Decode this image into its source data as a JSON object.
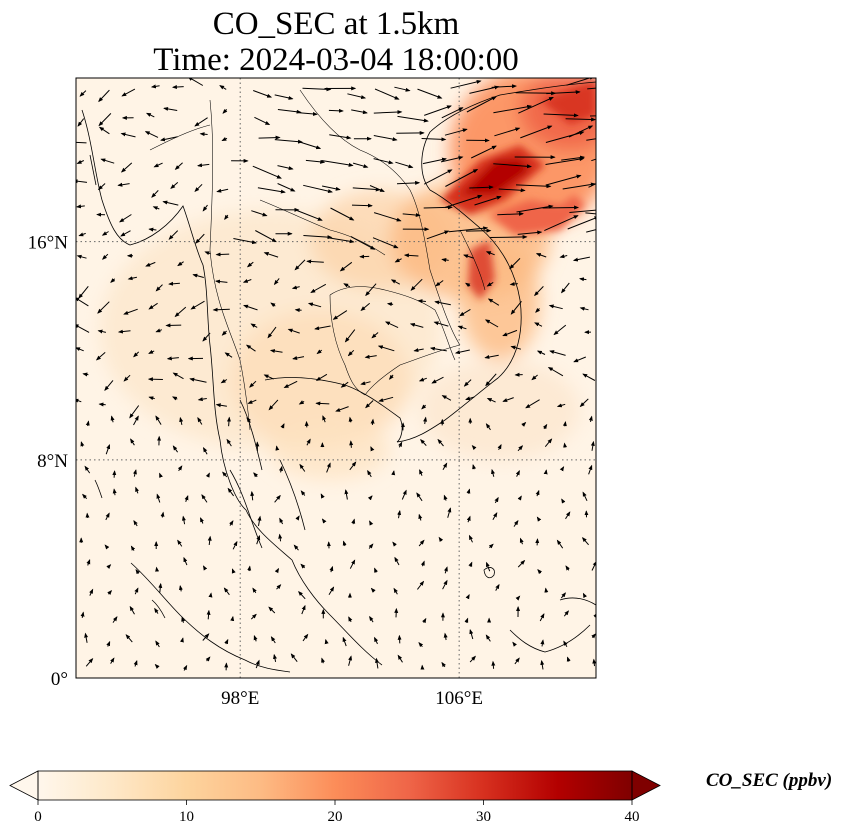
{
  "title": {
    "line1": "CO_SEC at 1.5km",
    "line2": "Time: 2024-03-04 18:00:00"
  },
  "map": {
    "lon_range": [
      92,
      111
    ],
    "lat_range": [
      0,
      22
    ],
    "lon_ticks": [
      {
        "value": 98,
        "label": "98°E"
      },
      {
        "value": 106,
        "label": "106°E"
      }
    ],
    "lat_ticks": [
      {
        "value": 0,
        "label": "0°"
      },
      {
        "value": 8,
        "label": "8°N"
      },
      {
        "value": 16,
        "label": "16°N"
      }
    ],
    "gridlines": "dotted",
    "field_colormap": "OrRd",
    "overlay": "wind vectors (quiver)"
  },
  "colorbar": {
    "label": "CO_SEC (ppbv)",
    "min": 0,
    "max": 40,
    "extend": "both",
    "ticks": [
      {
        "value": 0,
        "label": "0"
      },
      {
        "value": 10,
        "label": "10"
      },
      {
        "value": 20,
        "label": "20"
      },
      {
        "value": 30,
        "label": "30"
      },
      {
        "value": 40,
        "label": "40"
      }
    ],
    "colors": [
      "#fff7ec",
      "#fee8c8",
      "#fdd49e",
      "#fdbb84",
      "#fc8d59",
      "#ef6548",
      "#d7301f",
      "#b30000",
      "#7f0000"
    ]
  }
}
